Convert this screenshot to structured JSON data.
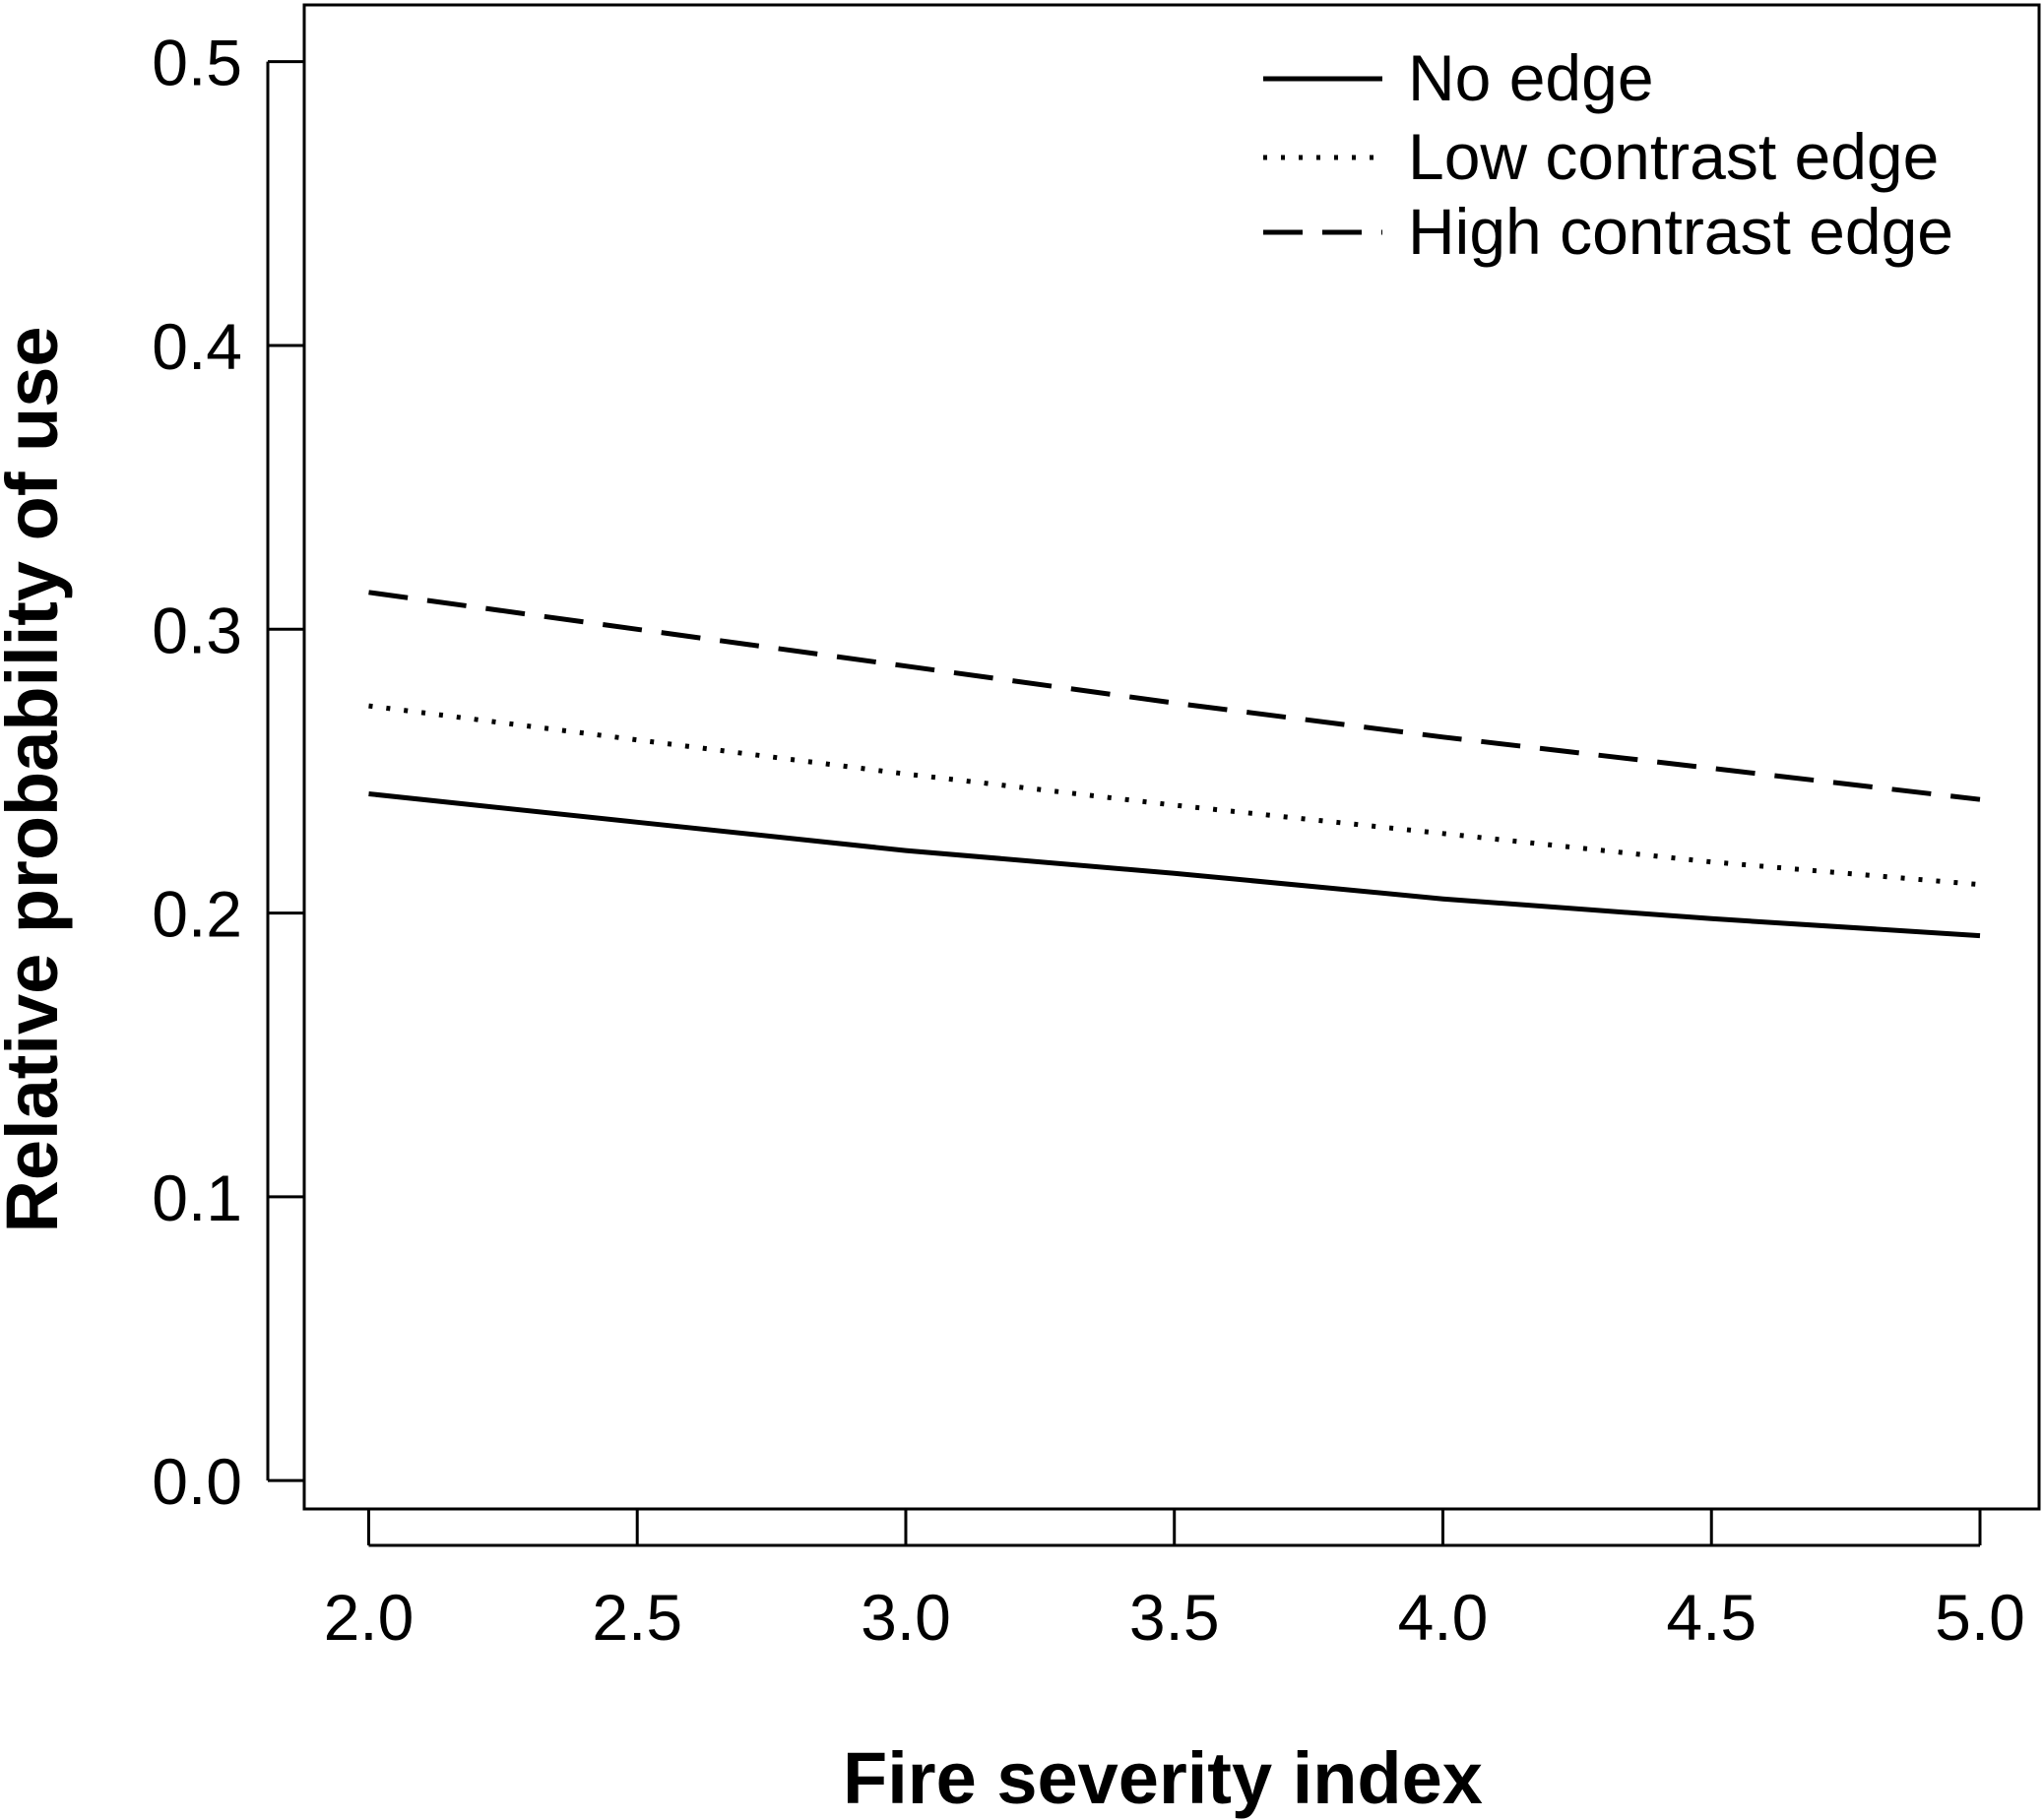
{
  "chart_data": {
    "type": "line",
    "title": "",
    "xlabel": "Fire severity index",
    "ylabel": "Relative probability of use",
    "xlim": [
      1.88,
      5.11
    ],
    "ylim": [
      -0.01,
      0.52
    ],
    "x_ticks": [
      2.0,
      2.5,
      3.0,
      3.5,
      4.0,
      4.5,
      5.0
    ],
    "x_tick_labels": [
      "2.0",
      "2.5",
      "3.0",
      "3.5",
      "4.0",
      "4.5",
      "5.0"
    ],
    "y_ticks": [
      0.0,
      0.1,
      0.2,
      0.3,
      0.4,
      0.5
    ],
    "y_tick_labels": [
      "0.0",
      "0.1",
      "0.2",
      "0.3",
      "0.4",
      "0.5"
    ],
    "grid": false,
    "legend_position": "top-right",
    "series": [
      {
        "name": "No edge",
        "line_style": "solid",
        "x": [
          2.0,
          2.5,
          3.0,
          3.5,
          4.0,
          4.5,
          5.0
        ],
        "y": [
          0.242,
          0.232,
          0.222,
          0.214,
          0.205,
          0.198,
          0.192
        ]
      },
      {
        "name": "Low contrast edge",
        "line_style": "dotted",
        "x": [
          2.0,
          2.5,
          3.0,
          3.5,
          4.0,
          4.5,
          5.0
        ],
        "y": [
          0.273,
          0.261,
          0.249,
          0.238,
          0.228,
          0.218,
          0.21
        ]
      },
      {
        "name": "High contrast edge",
        "line_style": "dashed",
        "x": [
          2.0,
          2.5,
          3.0,
          3.5,
          4.0,
          4.5,
          5.0
        ],
        "y": [
          0.313,
          0.3,
          0.287,
          0.274,
          0.262,
          0.251,
          0.24
        ]
      }
    ]
  }
}
